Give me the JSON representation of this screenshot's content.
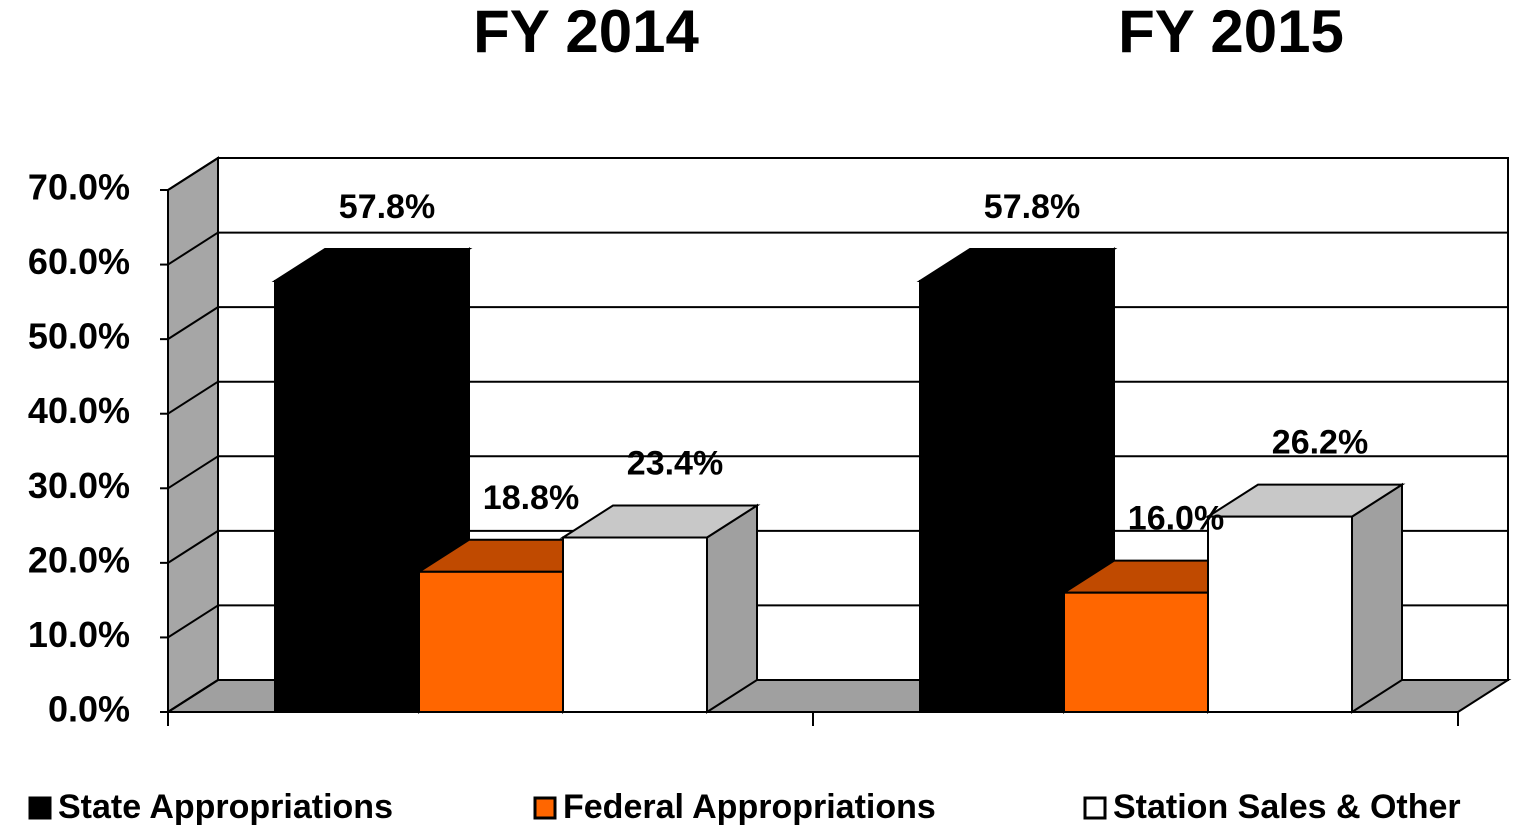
{
  "chart_data": {
    "type": "bar3d",
    "categories": [
      "FY 2014",
      "FY 2015"
    ],
    "series": [
      {
        "name": "State Appropriations",
        "color": "#000000",
        "top_color": "#000000",
        "side_color": "#000000",
        "values": [
          57.8,
          57.8
        ],
        "value_labels": [
          "57.8%",
          "57.8%"
        ]
      },
      {
        "name": "Federal Appropriations",
        "color": "#ff6600",
        "top_color": "#c04a00",
        "side_color": "#c04a00",
        "values": [
          18.8,
          16.0
        ],
        "value_labels": [
          "18.8%",
          "16.0%"
        ]
      },
      {
        "name": "Station Sales & Other",
        "color": "#ffffff",
        "top_color": "#c8c8c8",
        "side_color": "#a0a0a0",
        "values": [
          23.4,
          26.2
        ],
        "value_labels": [
          "23.4%",
          "26.2%"
        ]
      }
    ],
    "ylim": [
      0,
      70
    ],
    "yticks": [
      {
        "value": 0,
        "label": "0.0%"
      },
      {
        "value": 10,
        "label": "10.0%"
      },
      {
        "value": 20,
        "label": "20.0%"
      },
      {
        "value": 30,
        "label": "30.0%"
      },
      {
        "value": 40,
        "label": "40.0%"
      },
      {
        "value": 50,
        "label": "50.0%"
      },
      {
        "value": 60,
        "label": "60.0%"
      },
      {
        "value": 70,
        "label": "70.0%"
      }
    ],
    "grid": true,
    "legend": "bottom"
  }
}
